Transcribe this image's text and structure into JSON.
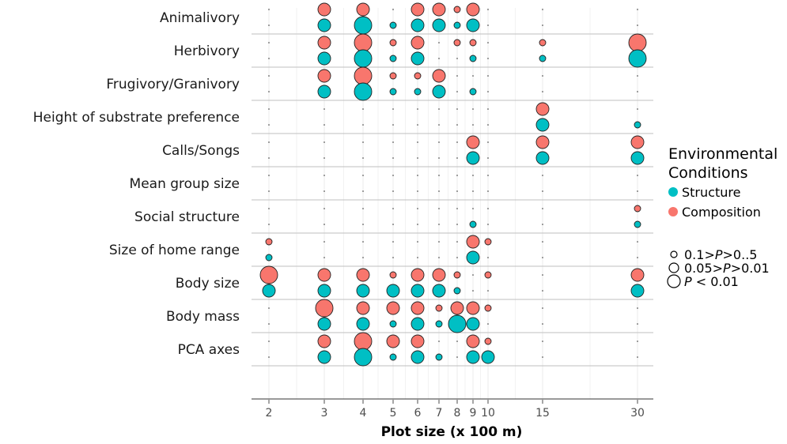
{
  "chart_data": {
    "type": "scatter",
    "xlabel": "Plot size (x 100 m)",
    "x_ticks": [
      2,
      3,
      4,
      5,
      6,
      7,
      8,
      9,
      10,
      15,
      30
    ],
    "rows": [
      "Animalivory",
      "Herbivory",
      "Frugivory/Granivory",
      "Height of substrate preference",
      "Calls/Songs",
      "Mean group size",
      "Social structure",
      "Size of home range",
      "Body size",
      "Body mass",
      "PCA axes"
    ],
    "legend": {
      "color_title": "Environmental Conditions",
      "color_title_lines": [
        "Environmental",
        "Conditions"
      ],
      "size_levels": [
        {
          "text": "0.1>P>0..5",
          "pre": "0.1>",
          "p": "P",
          "post": ">0..5"
        },
        {
          "text": "0.05>P>0.01",
          "pre": "0.05>",
          "p": "P",
          "post": ">0.01"
        },
        {
          "text": "P < 0.01",
          "pre": "",
          "p": "P",
          "post": " < 0.01"
        }
      ]
    },
    "series": [
      {
        "name": "Composition",
        "color": "#F8766D",
        "points": [
          {
            "row": "Animalivory",
            "x": 3,
            "level": 3
          },
          {
            "row": "Animalivory",
            "x": 4,
            "level": 3
          },
          {
            "row": "Animalivory",
            "x": 6,
            "level": 3
          },
          {
            "row": "Animalivory",
            "x": 7,
            "level": 3
          },
          {
            "row": "Animalivory",
            "x": 8,
            "level": 1
          },
          {
            "row": "Animalivory",
            "x": 9,
            "level": 3
          },
          {
            "row": "Herbivory",
            "x": 3,
            "level": 3
          },
          {
            "row": "Herbivory",
            "x": 4,
            "level": 4
          },
          {
            "row": "Herbivory",
            "x": 5,
            "level": 1
          },
          {
            "row": "Herbivory",
            "x": 6,
            "level": 3
          },
          {
            "row": "Herbivory",
            "x": 8,
            "level": 1
          },
          {
            "row": "Herbivory",
            "x": 9,
            "level": 1
          },
          {
            "row": "Herbivory",
            "x": 15,
            "level": 1
          },
          {
            "row": "Herbivory",
            "x": 30,
            "level": 4
          },
          {
            "row": "Frugivory/Granivory",
            "x": 3,
            "level": 3
          },
          {
            "row": "Frugivory/Granivory",
            "x": 4,
            "level": 4
          },
          {
            "row": "Frugivory/Granivory",
            "x": 5,
            "level": 1
          },
          {
            "row": "Frugivory/Granivory",
            "x": 6,
            "level": 1
          },
          {
            "row": "Frugivory/Granivory",
            "x": 7,
            "level": 3
          },
          {
            "row": "Height of substrate preference",
            "x": 15,
            "level": 3
          },
          {
            "row": "Calls/Songs",
            "x": 9,
            "level": 3
          },
          {
            "row": "Calls/Songs",
            "x": 15,
            "level": 3
          },
          {
            "row": "Calls/Songs",
            "x": 30,
            "level": 3
          },
          {
            "row": "Social structure",
            "x": 30,
            "level": 1
          },
          {
            "row": "Size of home range",
            "x": 2,
            "level": 1
          },
          {
            "row": "Size of home range",
            "x": 9,
            "level": 3
          },
          {
            "row": "Size of home range",
            "x": 10,
            "level": 1
          },
          {
            "row": "Body size",
            "x": 2,
            "level": 4
          },
          {
            "row": "Body size",
            "x": 3,
            "level": 3
          },
          {
            "row": "Body size",
            "x": 4,
            "level": 3
          },
          {
            "row": "Body size",
            "x": 5,
            "level": 1
          },
          {
            "row": "Body size",
            "x": 6,
            "level": 3
          },
          {
            "row": "Body size",
            "x": 7,
            "level": 3
          },
          {
            "row": "Body size",
            "x": 8,
            "level": 1
          },
          {
            "row": "Body size",
            "x": 10,
            "level": 1
          },
          {
            "row": "Body size",
            "x": 30,
            "level": 3
          },
          {
            "row": "Body mass",
            "x": 3,
            "level": 4
          },
          {
            "row": "Body mass",
            "x": 4,
            "level": 3
          },
          {
            "row": "Body mass",
            "x": 5,
            "level": 3
          },
          {
            "row": "Body mass",
            "x": 6,
            "level": 3
          },
          {
            "row": "Body mass",
            "x": 7,
            "level": 1
          },
          {
            "row": "Body mass",
            "x": 8,
            "level": 3
          },
          {
            "row": "Body mass",
            "x": 9,
            "level": 3
          },
          {
            "row": "Body mass",
            "x": 10,
            "level": 1
          },
          {
            "row": "PCA axes",
            "x": 3,
            "level": 3
          },
          {
            "row": "PCA axes",
            "x": 4,
            "level": 4
          },
          {
            "row": "PCA axes",
            "x": 5,
            "level": 3
          },
          {
            "row": "PCA axes",
            "x": 6,
            "level": 3
          },
          {
            "row": "PCA axes",
            "x": 9,
            "level": 3
          },
          {
            "row": "PCA axes",
            "x": 10,
            "level": 1
          }
        ]
      },
      {
        "name": "Structure",
        "color": "#00BFC4",
        "points": [
          {
            "row": "Animalivory",
            "x": 3,
            "level": 3
          },
          {
            "row": "Animalivory",
            "x": 4,
            "level": 4
          },
          {
            "row": "Animalivory",
            "x": 5,
            "level": 1
          },
          {
            "row": "Animalivory",
            "x": 6,
            "level": 3
          },
          {
            "row": "Animalivory",
            "x": 7,
            "level": 3
          },
          {
            "row": "Animalivory",
            "x": 8,
            "level": 1
          },
          {
            "row": "Animalivory",
            "x": 9,
            "level": 3
          },
          {
            "row": "Herbivory",
            "x": 3,
            "level": 3
          },
          {
            "row": "Herbivory",
            "x": 4,
            "level": 4
          },
          {
            "row": "Herbivory",
            "x": 5,
            "level": 1
          },
          {
            "row": "Herbivory",
            "x": 6,
            "level": 3
          },
          {
            "row": "Herbivory",
            "x": 9,
            "level": 1
          },
          {
            "row": "Herbivory",
            "x": 15,
            "level": 1
          },
          {
            "row": "Herbivory",
            "x": 30,
            "level": 4
          },
          {
            "row": "Frugivory/Granivory",
            "x": 3,
            "level": 3
          },
          {
            "row": "Frugivory/Granivory",
            "x": 4,
            "level": 4
          },
          {
            "row": "Frugivory/Granivory",
            "x": 5,
            "level": 1
          },
          {
            "row": "Frugivory/Granivory",
            "x": 6,
            "level": 1
          },
          {
            "row": "Frugivory/Granivory",
            "x": 7,
            "level": 3
          },
          {
            "row": "Frugivory/Granivory",
            "x": 9,
            "level": 1
          },
          {
            "row": "Height of substrate preference",
            "x": 15,
            "level": 3
          },
          {
            "row": "Height of substrate preference",
            "x": 30,
            "level": 1
          },
          {
            "row": "Calls/Songs",
            "x": 9,
            "level": 3
          },
          {
            "row": "Calls/Songs",
            "x": 15,
            "level": 3
          },
          {
            "row": "Calls/Songs",
            "x": 30,
            "level": 3
          },
          {
            "row": "Social structure",
            "x": 9,
            "level": 1
          },
          {
            "row": "Social structure",
            "x": 30,
            "level": 1
          },
          {
            "row": "Size of home range",
            "x": 2,
            "level": 1
          },
          {
            "row": "Size of home range",
            "x": 9,
            "level": 3
          },
          {
            "row": "Body size",
            "x": 2,
            "level": 3
          },
          {
            "row": "Body size",
            "x": 3,
            "level": 3
          },
          {
            "row": "Body size",
            "x": 4,
            "level": 3
          },
          {
            "row": "Body size",
            "x": 5,
            "level": 3
          },
          {
            "row": "Body size",
            "x": 6,
            "level": 3
          },
          {
            "row": "Body size",
            "x": 7,
            "level": 3
          },
          {
            "row": "Body size",
            "x": 8,
            "level": 1
          },
          {
            "row": "Body size",
            "x": 30,
            "level": 3
          },
          {
            "row": "Body mass",
            "x": 3,
            "level": 3
          },
          {
            "row": "Body mass",
            "x": 4,
            "level": 3
          },
          {
            "row": "Body mass",
            "x": 5,
            "level": 1
          },
          {
            "row": "Body mass",
            "x": 6,
            "level": 3
          },
          {
            "row": "Body mass",
            "x": 7,
            "level": 1
          },
          {
            "row": "Body mass",
            "x": 8,
            "level": 4
          },
          {
            "row": "Body mass",
            "x": 9,
            "level": 3
          },
          {
            "row": "PCA axes",
            "x": 3,
            "level": 3
          },
          {
            "row": "PCA axes",
            "x": 4,
            "level": 4
          },
          {
            "row": "PCA axes",
            "x": 5,
            "level": 1
          },
          {
            "row": "PCA axes",
            "x": 6,
            "level": 3
          },
          {
            "row": "PCA axes",
            "x": 7,
            "level": 1
          },
          {
            "row": "PCA axes",
            "x": 9,
            "level": 3
          },
          {
            "row": "PCA axes",
            "x": 10,
            "level": 3
          }
        ]
      }
    ]
  }
}
